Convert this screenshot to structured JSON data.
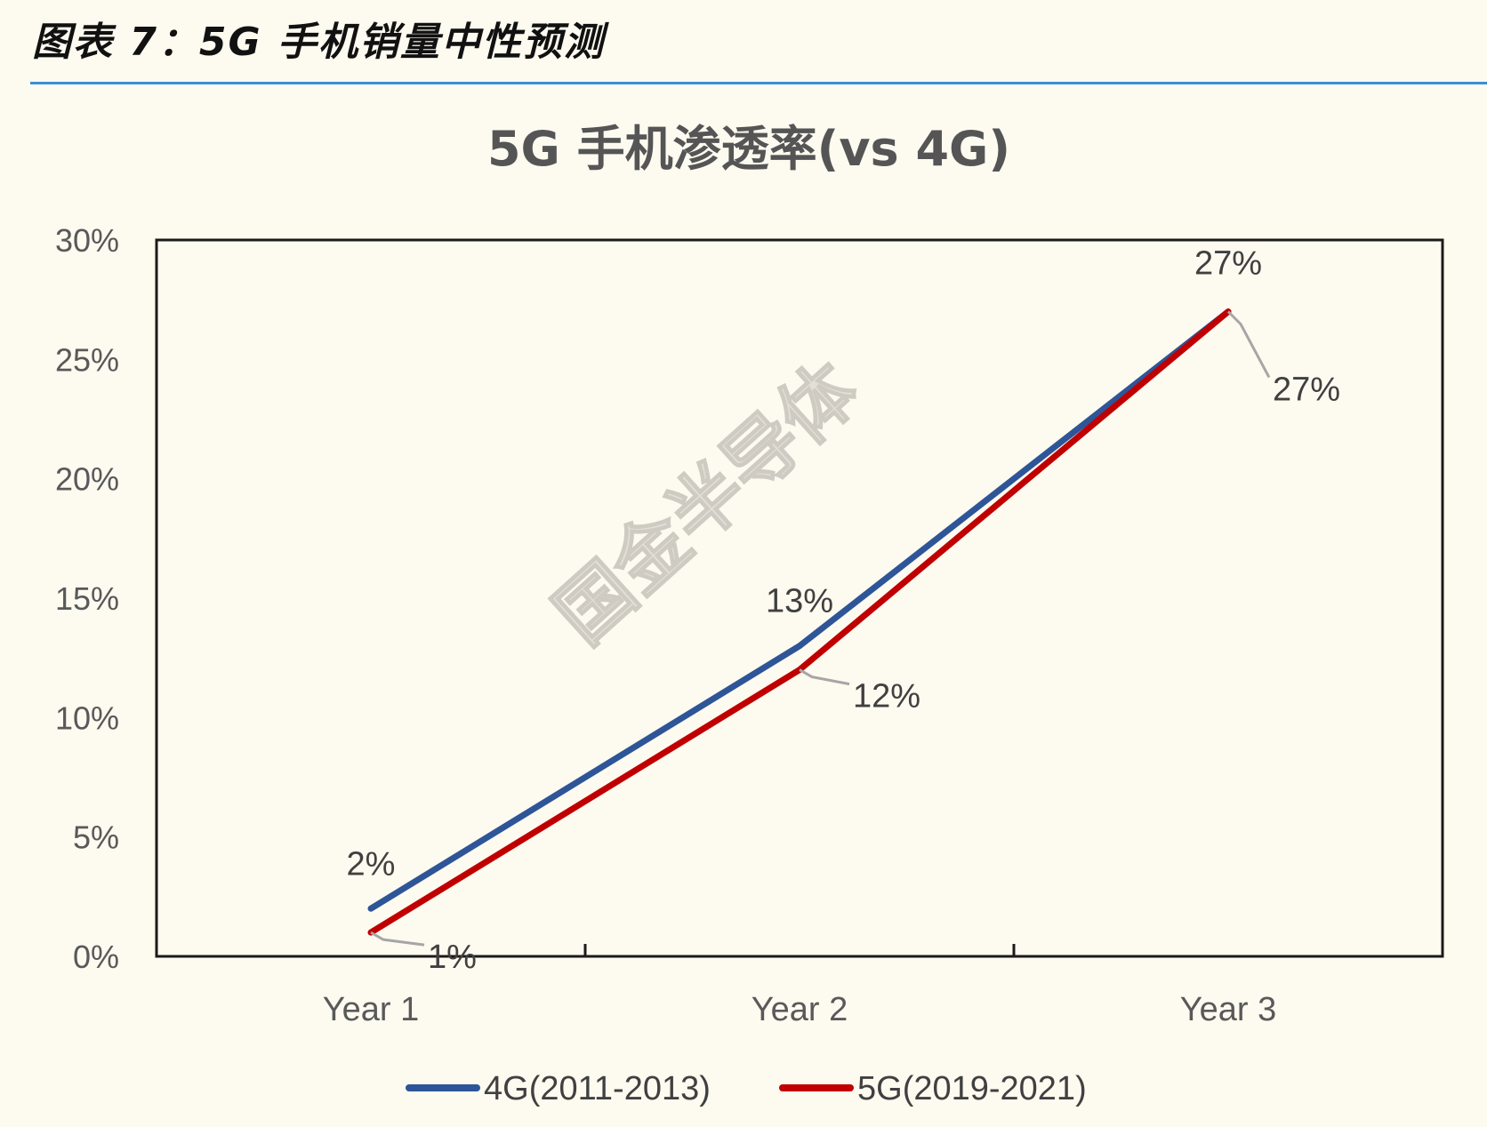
{
  "caption": "图表 7：5G 手机销量中性预测",
  "watermark": "国金半导体",
  "colors": {
    "accent_rule": "#3a8fd6",
    "series_4g": "#2e5597",
    "series_5g": "#c00000"
  },
  "chart_data": {
    "type": "line",
    "title": "5G 手机渗透率(vs 4G)",
    "categories": [
      "Year 1",
      "Year 2",
      "Year 3"
    ],
    "series": [
      {
        "name": "4G(2011-2013)",
        "values": [
          2,
          13,
          27
        ],
        "labels": [
          "2%",
          "13%",
          "27%"
        ],
        "color": "#2e5597"
      },
      {
        "name": "5G(2019-2021)",
        "values": [
          1,
          12,
          27
        ],
        "labels": [
          "1%",
          "12%",
          "27%"
        ],
        "color": "#c00000"
      }
    ],
    "ylim": [
      0,
      30
    ],
    "yticks": [
      0,
      5,
      10,
      15,
      20,
      25,
      30
    ],
    "ytick_labels": [
      "0%",
      "5%",
      "10%",
      "15%",
      "20%",
      "25%",
      "30%"
    ],
    "xlabel": "",
    "ylabel": "",
    "grid": false,
    "legend": "bottom"
  }
}
